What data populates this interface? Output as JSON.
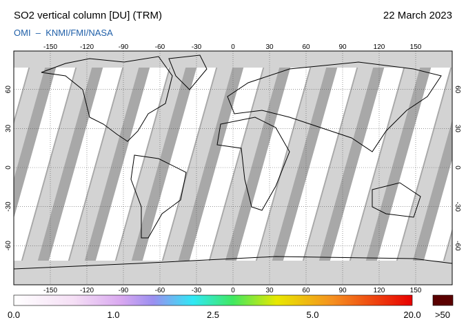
{
  "header": {
    "title": "SO2 vertical column [DU] (TRM)",
    "date": "22 March 2023",
    "source": "OMI  –  KNMI/FMI/NASA"
  },
  "map": {
    "lon_ticks": [
      -150,
      -120,
      -90,
      -60,
      -30,
      0,
      30,
      60,
      90,
      120,
      150
    ],
    "lat_ticks": [
      60,
      30,
      0,
      -30,
      -60
    ]
  },
  "colorbar": {
    "labels": [
      "0.0",
      "1.0",
      "2.5",
      "5.0",
      "20.0"
    ],
    "overflow_label": ">50"
  }
}
